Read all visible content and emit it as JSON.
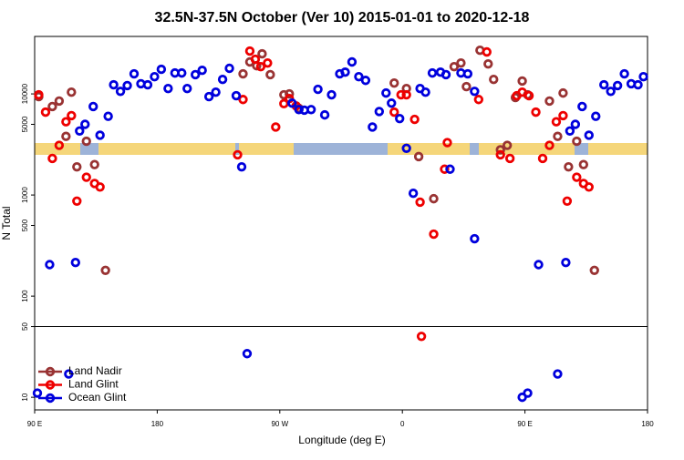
{
  "chart_data": {
    "type": "scatter",
    "title": "32.5N-37.5N October (Ver 10)   2015-01-01 to 2020-12-18",
    "x_label": "Longitude (deg E)",
    "y_label": "N Total",
    "xlim": [
      90,
      540
    ],
    "xticks": [
      {
        "value": 90,
        "label": "90 E"
      },
      180,
      {
        "value": 270,
        "label": "90 W"
      },
      {
        "value": 360,
        "label": "0"
      },
      {
        "value": 450,
        "label": "90 E"
      },
      {
        "value": 540,
        "label": "180"
      }
    ],
    "ylim": [
      7.5,
      37000
    ],
    "yscale": "log",
    "yticks": [
      10,
      50,
      100,
      500,
      1000,
      5000,
      10000
    ],
    "hline": 50,
    "legend": "lower left",
    "series": [
      {
        "name": "Land Nadir",
        "color": "#993333",
        "x": [
          93,
          103,
          108,
          113,
          117,
          121,
          128,
          134,
          142,
          243,
          248,
          253,
          257,
          263,
          273,
          277,
          284,
          354,
          363,
          372,
          383,
          398,
          403,
          407,
          417,
          423,
          427,
          432,
          437,
          443,
          448,
          452,
          468,
          474,
          478,
          482,
          488,
          493,
          501
        ],
        "values": [
          9400,
          7500,
          8500,
          3800,
          10400,
          1900,
          3400,
          2000,
          180,
          15800,
          20700,
          19000,
          24900,
          15500,
          9800,
          10000,
          7200,
          12800,
          11300,
          2400,
          920,
          18600,
          20200,
          11800,
          27000,
          19800,
          13900,
          2800,
          3100,
          9200,
          13400,
          9800,
          8500,
          3800,
          10200,
          1900,
          3400,
          2000,
          180
        ]
      },
      {
        "name": "Land Glint",
        "color": "#ee0000",
        "x": [
          93,
          98,
          103,
          108,
          113,
          117,
          121,
          128,
          134,
          138,
          239,
          243,
          248,
          252,
          256,
          261,
          267,
          273,
          277,
          282,
          354,
          359,
          363,
          369,
          373,
          374,
          383,
          391,
          393,
          416,
          422,
          432,
          439,
          444,
          448,
          453,
          458,
          463,
          468,
          473,
          478,
          481,
          488,
          493,
          497
        ],
        "values": [
          9800,
          6600,
          2300,
          3100,
          5300,
          6100,
          870,
          1500,
          1300,
          1200,
          2500,
          8800,
          26500,
          22000,
          18600,
          20200,
          4700,
          8000,
          9000,
          7600,
          6600,
          9800,
          9800,
          5600,
          850,
          40,
          410,
          1800,
          3300,
          8800,
          26000,
          2500,
          2300,
          9600,
          10400,
          9600,
          6600,
          2300,
          3100,
          5300,
          6100,
          870,
          1500,
          1300,
          1200
        ]
      },
      {
        "name": "Ocean Glint",
        "color": "#0000dd",
        "x": [
          92,
          101,
          115,
          120,
          123,
          127,
          133,
          138,
          144,
          148,
          153,
          158,
          163,
          168,
          173,
          178,
          183,
          188,
          193,
          198,
          202,
          208,
          213,
          218,
          223,
          228,
          233,
          238,
          242,
          246,
          279,
          284,
          288,
          293,
          298,
          303,
          308,
          314,
          318,
          323,
          328,
          333,
          338,
          343,
          348,
          352,
          358,
          363,
          368,
          373,
          377,
          382,
          388,
          392,
          395,
          403,
          408,
          413,
          413,
          448,
          452,
          460,
          474,
          480,
          483,
          487,
          492,
          497,
          502,
          508,
          513,
          518,
          523,
          528,
          533,
          537
        ],
        "values": [
          11,
          205,
          17,
          215,
          4300,
          5000,
          7500,
          3900,
          6000,
          12300,
          10600,
          12100,
          15800,
          12600,
          12300,
          14800,
          17500,
          11300,
          16100,
          16100,
          11300,
          15500,
          17100,
          9400,
          10400,
          13900,
          17900,
          9600,
          1900,
          27,
          8100,
          7000,
          6900,
          7000,
          11100,
          6200,
          9800,
          15800,
          16400,
          20700,
          14800,
          13600,
          4700,
          6700,
          10200,
          8100,
          5700,
          2900,
          1040,
          11300,
          10400,
          16100,
          16400,
          15500,
          1800,
          16100,
          15800,
          10600,
          370,
          10,
          11,
          205,
          17,
          215,
          4300,
          5000,
          7500,
          3900,
          6000,
          12300,
          10600,
          12100,
          15800,
          12600,
          12300,
          14800
        ]
      }
    ]
  }
}
